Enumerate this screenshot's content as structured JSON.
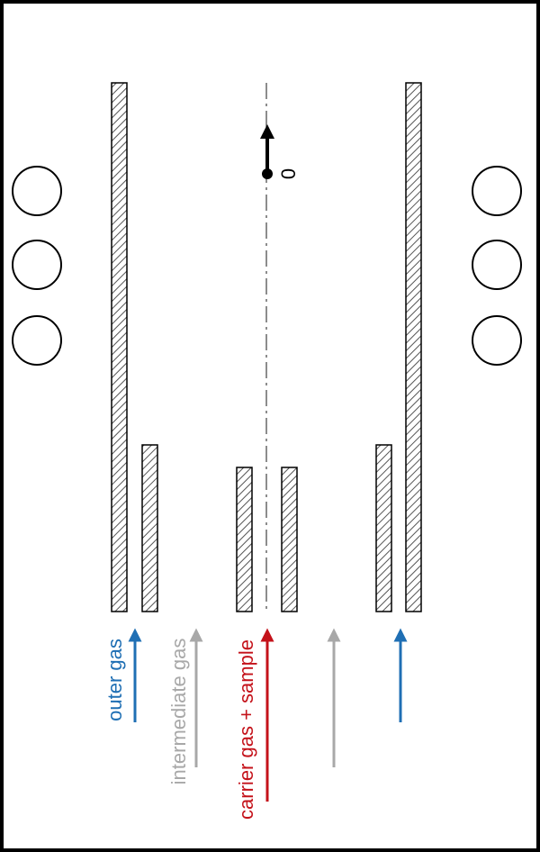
{
  "labels": {
    "outer_gas": "outer gas",
    "intermediate_gas": "intermediate gas",
    "carrier_gas_sample": "carrier gas + sample",
    "origin_marker": "0"
  },
  "colors": {
    "outer_gas": "#1f6fb4",
    "intermediate_gas": "#a8a8a8",
    "carrier_gas_sample": "#c4121a",
    "frame": "#000000"
  }
}
